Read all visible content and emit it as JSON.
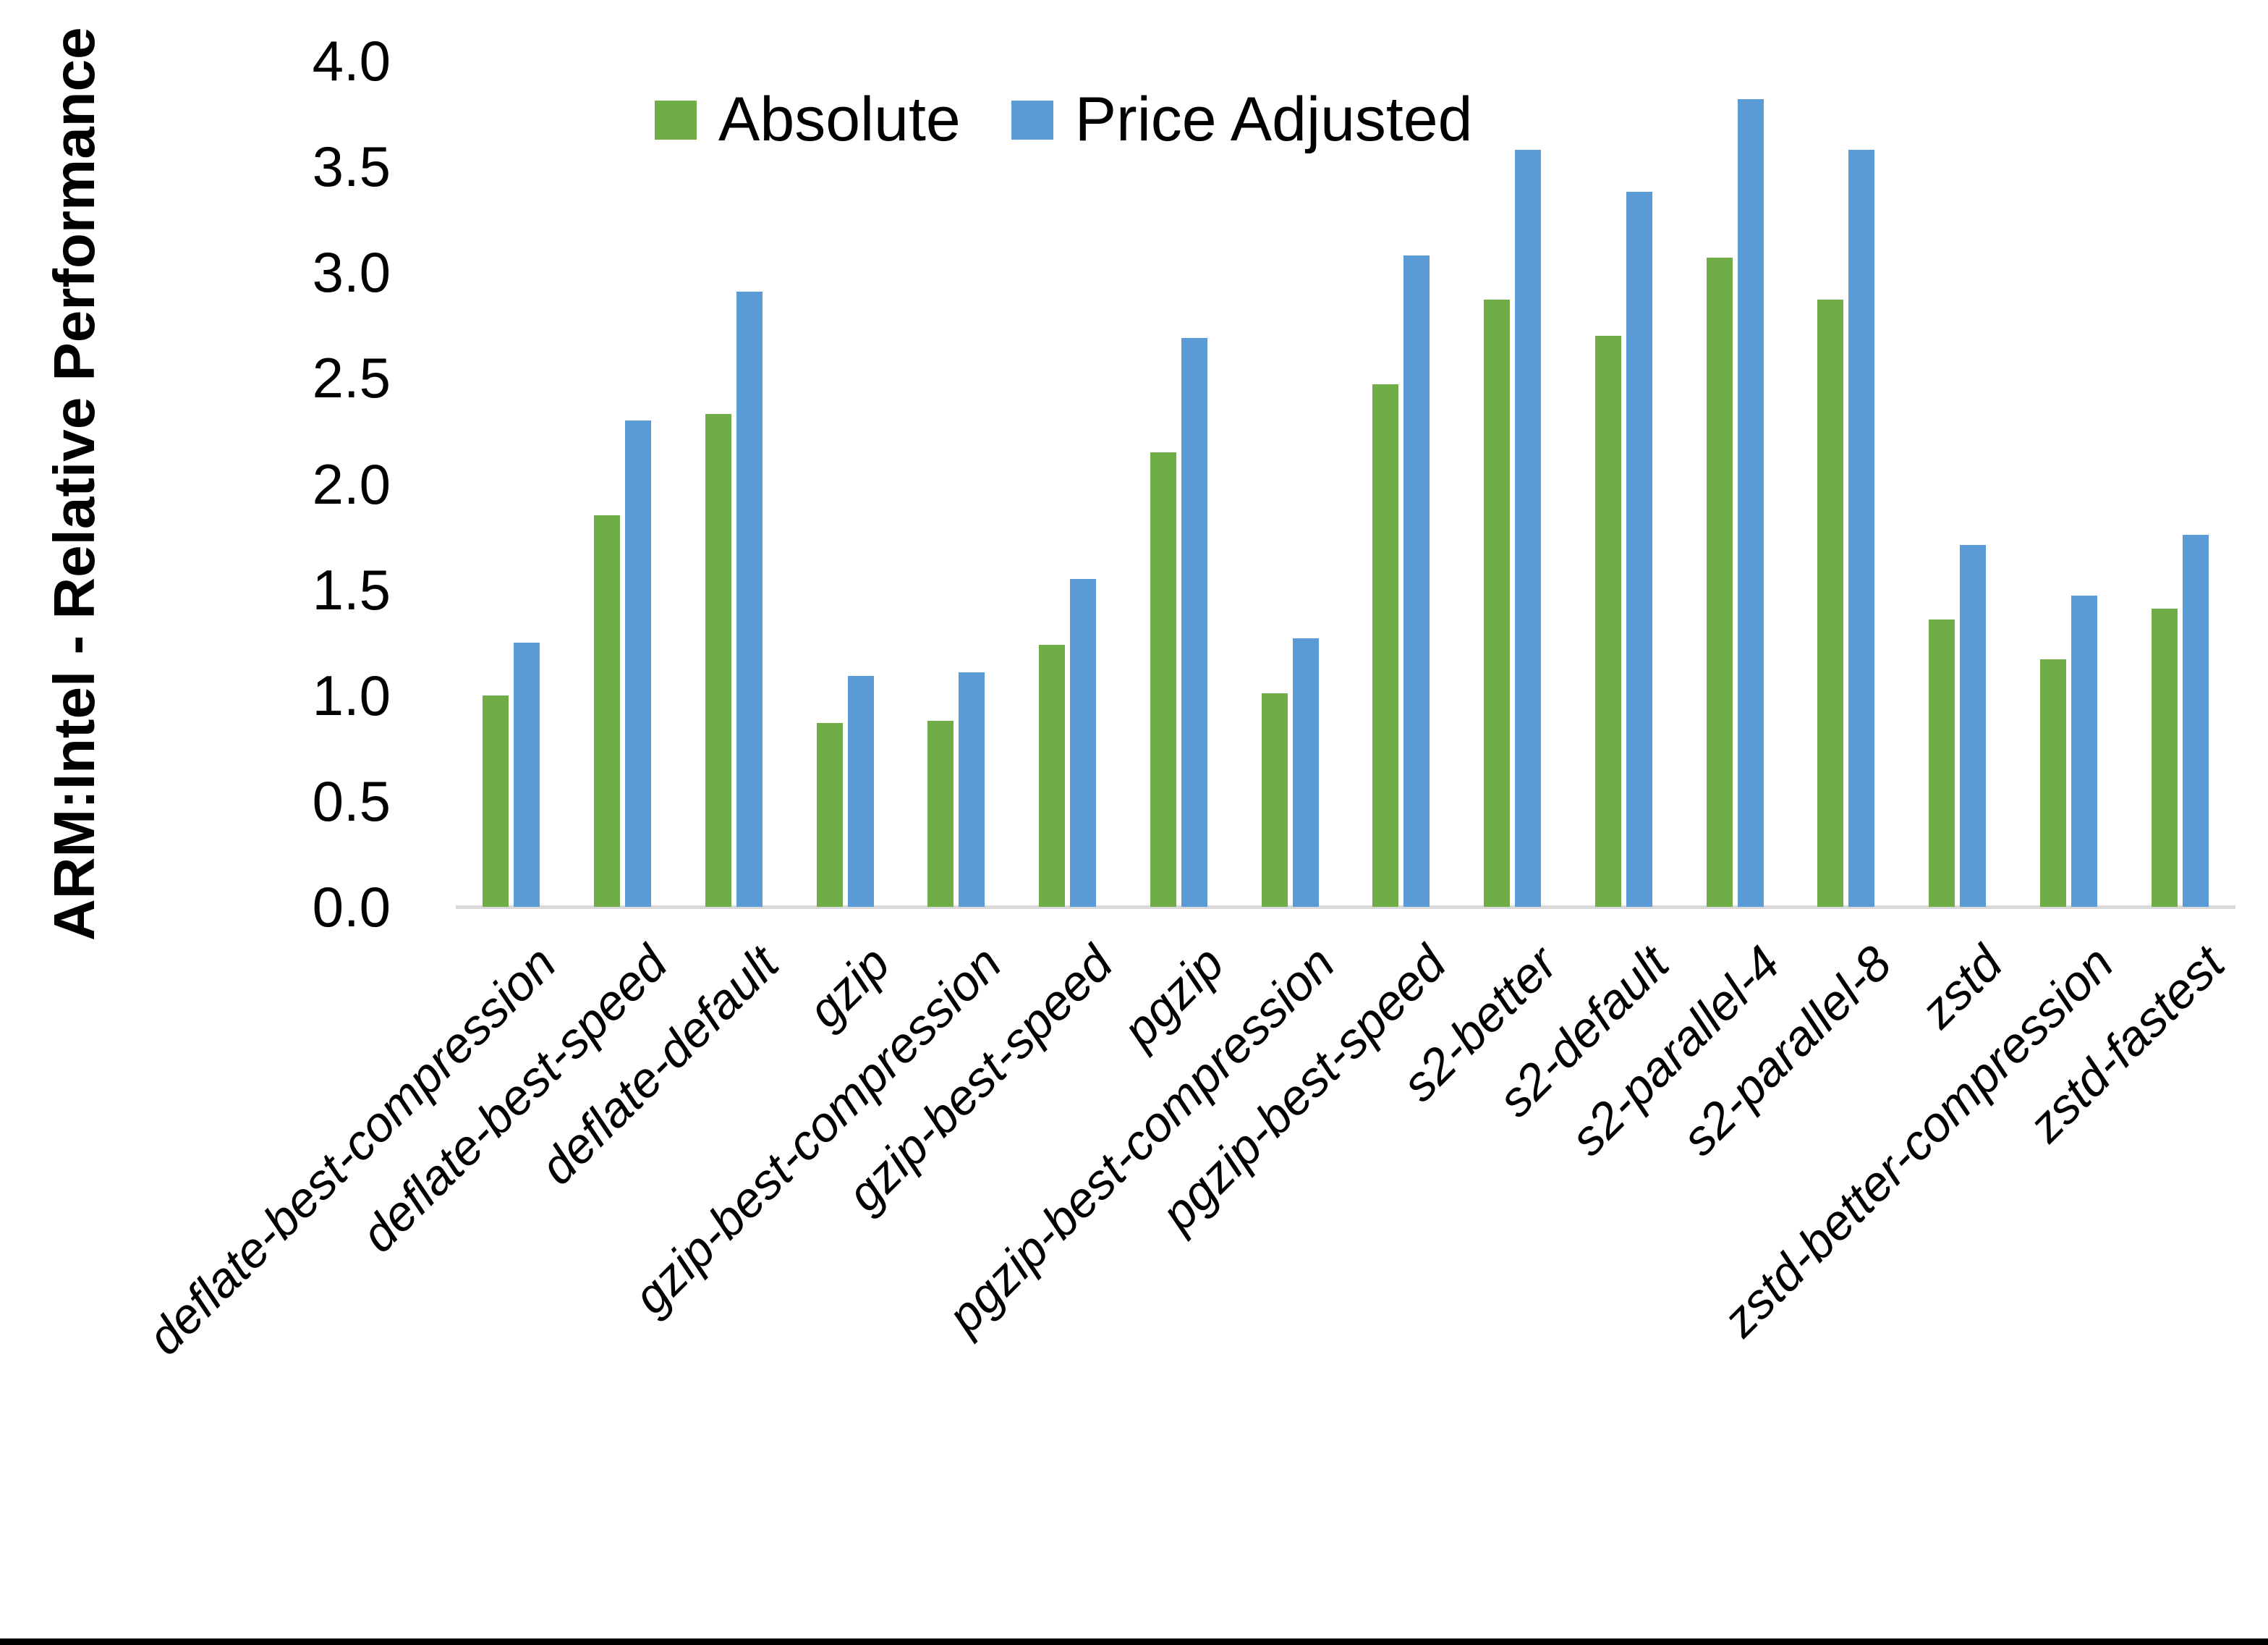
{
  "page": {
    "background": "#FFFFFF",
    "bottom_border_color": "#000000"
  },
  "chart_data": {
    "type": "bar",
    "title": "",
    "xlabel": "",
    "ylabel": "ARM:Intel - Relative Performance",
    "ylim": [
      0,
      4
    ],
    "ytick_labels": [
      "0.0",
      "0.5",
      "1.0",
      "1.5",
      "2.0",
      "2.5",
      "3.0",
      "3.5",
      "4.0"
    ],
    "grid": false,
    "legend_position": "top-center",
    "axis_line_color": "#D9D9D9",
    "categories": [
      "deflate-best-compression",
      "deflate-best-speed",
      "deflate-default",
      "gzip",
      "gzip-best-compression",
      "gzip-best-speed",
      "pgzip",
      "pgzip-best-compression",
      "pgzip-best-speed",
      "s2-better",
      "s2-default",
      "s2-parallel-4",
      "s2-parallel-8",
      "zstd",
      "zstd-better-compression",
      "zstd-fastest"
    ],
    "series": [
      {
        "name": "Absolute",
        "color": "#70AD47",
        "values": [
          1.0,
          1.85,
          2.33,
          0.87,
          0.88,
          1.24,
          2.15,
          1.01,
          2.47,
          2.87,
          2.7,
          3.07,
          2.87,
          1.36,
          1.17,
          1.41
        ]
      },
      {
        "name": "Price Adjusted",
        "color": "#5B9BD5",
        "values": [
          1.25,
          2.3,
          2.91,
          1.09,
          1.11,
          1.55,
          2.69,
          1.27,
          3.08,
          3.58,
          3.38,
          3.82,
          3.58,
          1.71,
          1.47,
          1.76
        ]
      }
    ]
  }
}
